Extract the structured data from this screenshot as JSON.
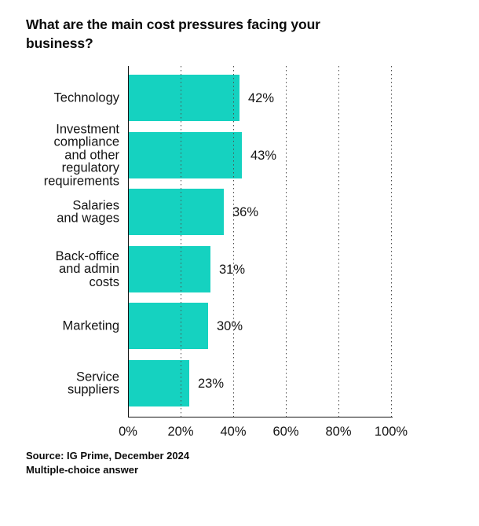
{
  "title": "What are the main cost pressures facing your\nbusiness?",
  "colors": {
    "bar": "#15d2c0",
    "text": "#141414",
    "grid": "#4d4d4d",
    "axis": "#141414",
    "background": "#ffffff"
  },
  "chart_data": {
    "type": "bar",
    "orientation": "horizontal",
    "title": "What are the main cost pressures facing your business?",
    "categories": [
      "Technology",
      "Investment compliance and other regulatory requirements",
      "Salaries and wages",
      "Back-office and admin costs",
      "Marketing",
      "Service suppliers"
    ],
    "display_labels": [
      "Technology",
      "Investment\ncompliance\nand other\nregulatory\nrequirements",
      "Salaries\nand wages",
      "Back-office\nand admin\ncosts",
      "Marketing",
      "Service\nsuppliers"
    ],
    "values": [
      42,
      43,
      36,
      31,
      30,
      23
    ],
    "value_labels": [
      "42%",
      "43%",
      "36%",
      "31%",
      "30%",
      "23%"
    ],
    "xlabel": "",
    "ylabel": "",
    "xlim": [
      0,
      100
    ],
    "x_tick_labels": [
      "0%",
      "20%",
      "40%",
      "60%",
      "80%",
      "100%"
    ],
    "grid": "vertical-dotted",
    "legend": "none",
    "bar_color": "#15d2c0"
  },
  "footer": {
    "source": "Source: IG Prime, December 2024",
    "method": "Multiple-choice answer"
  }
}
